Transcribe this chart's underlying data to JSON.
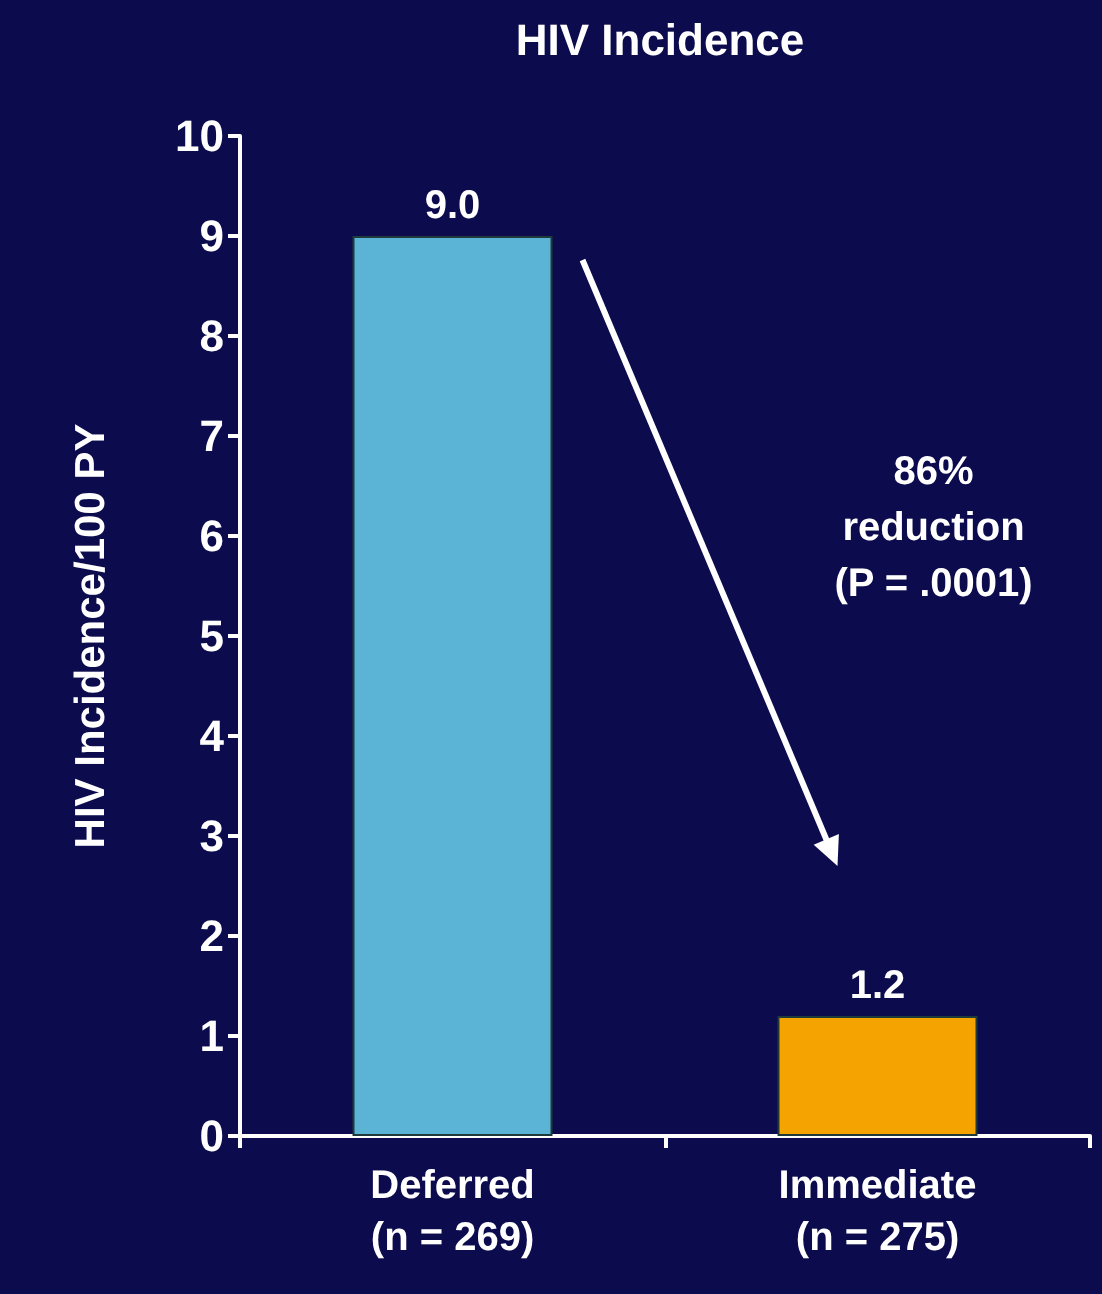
{
  "chart_data": {
    "type": "bar",
    "title": "HIV Incidence",
    "ylabel": "HIV Incidence/100 PY",
    "categories": [
      "Deferred\n(n = 269)",
      "Immediate\n(n = 275)"
    ],
    "values": [
      9.0,
      1.2
    ],
    "colors": [
      "#5bb3d5",
      "#f5a300"
    ],
    "value_labels": [
      "9.0",
      "1.2"
    ],
    "ylim": [
      0,
      10
    ],
    "yticks": [
      0,
      1,
      2,
      3,
      4,
      5,
      6,
      7,
      8,
      9,
      10
    ],
    "grid": false,
    "annotations": [
      "86%\nreduction\n(P = .0001)"
    ]
  }
}
